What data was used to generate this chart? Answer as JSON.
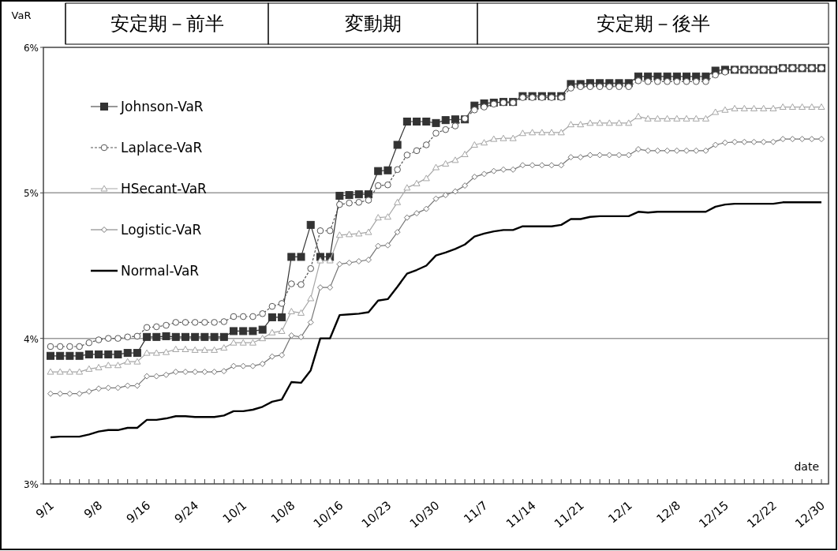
{
  "chart_data": {
    "type": "line",
    "ylabel": "VaR",
    "xlabel": "date",
    "annotations": [
      "安定期－前半",
      "変動期",
      "安定期－後半"
    ],
    "categories": [
      "9/1",
      null,
      null,
      null,
      null,
      "9/8",
      null,
      null,
      null,
      null,
      "9/16",
      null,
      null,
      null,
      null,
      "9/24",
      null,
      null,
      null,
      null,
      "10/1",
      null,
      null,
      null,
      null,
      "10/8",
      null,
      null,
      null,
      null,
      "10/16",
      null,
      null,
      null,
      null,
      "10/23",
      null,
      null,
      null,
      null,
      "10/30",
      null,
      null,
      null,
      null,
      "11/7",
      null,
      null,
      null,
      null,
      "11/14",
      null,
      null,
      null,
      null,
      "11/21",
      null,
      null,
      null,
      null,
      "12/1",
      null,
      null,
      null,
      null,
      "12/8",
      null,
      null,
      null,
      null,
      "12/15",
      null,
      null,
      null,
      null,
      "12/22",
      null,
      null,
      null,
      null,
      "12/30"
    ],
    "ylim": [
      3,
      6
    ],
    "yticks": [
      {
        "value": 3,
        "label": "3%"
      },
      {
        "value": 4,
        "label": "4%"
      },
      {
        "value": 5,
        "label": "5%"
      },
      {
        "value": 6,
        "label": "6%"
      }
    ],
    "grid": "y",
    "legend": "top left",
    "series": [
      {
        "name": "Johnson-VaR",
        "color": "#333333",
        "marker": "square",
        "line_style": "solid",
        "values": [
          3.88,
          3.88,
          3.88,
          3.88,
          3.89,
          3.89,
          3.89,
          3.89,
          3.9,
          3.9,
          4.01,
          4.01,
          4.015,
          4.01,
          4.01,
          4.01,
          4.01,
          4.01,
          4.01,
          4.05,
          4.05,
          4.05,
          4.06,
          4.145,
          4.145,
          4.56,
          4.56,
          4.78,
          4.56,
          4.56,
          4.98,
          4.985,
          4.99,
          4.99,
          5.15,
          5.155,
          5.33,
          5.49,
          5.49,
          5.49,
          5.48,
          5.5,
          5.505,
          5.505,
          5.6,
          5.615,
          5.62,
          5.625,
          5.625,
          5.665,
          5.665,
          5.665,
          5.665,
          5.665,
          5.748,
          5.748,
          5.754,
          5.754,
          5.754,
          5.754,
          5.754,
          5.8,
          5.8,
          5.8,
          5.8,
          5.8,
          5.8,
          5.8,
          5.8,
          5.84,
          5.846,
          5.846,
          5.846,
          5.846,
          5.846,
          5.846,
          5.857,
          5.857,
          5.857,
          5.857,
          5.857
        ]
      },
      {
        "name": "Laplace-VaR",
        "color": "#555555",
        "marker": "circle",
        "line_style": "dashed",
        "values": [
          3.944,
          3.944,
          3.944,
          3.944,
          3.97,
          3.99,
          4.0,
          4.0,
          4.01,
          4.015,
          4.075,
          4.08,
          4.09,
          4.11,
          4.11,
          4.11,
          4.11,
          4.11,
          4.115,
          4.15,
          4.15,
          4.15,
          4.17,
          4.22,
          4.24,
          4.375,
          4.37,
          4.48,
          4.74,
          4.74,
          4.92,
          4.93,
          4.935,
          4.95,
          5.05,
          5.055,
          5.16,
          5.26,
          5.29,
          5.33,
          5.41,
          5.435,
          5.46,
          5.51,
          5.57,
          5.59,
          5.61,
          5.62,
          5.62,
          5.655,
          5.655,
          5.655,
          5.655,
          5.655,
          5.72,
          5.73,
          5.73,
          5.73,
          5.73,
          5.73,
          5.73,
          5.77,
          5.765,
          5.765,
          5.765,
          5.765,
          5.765,
          5.765,
          5.765,
          5.81,
          5.83,
          5.846,
          5.846,
          5.846,
          5.846,
          5.846,
          5.857,
          5.857,
          5.857,
          5.857,
          5.857
        ]
      },
      {
        "name": "HSecant-VaR",
        "color": "#a6a6a6",
        "marker": "triangle",
        "line_style": "solid",
        "values": [
          3.77,
          3.77,
          3.77,
          3.77,
          3.79,
          3.8,
          3.815,
          3.815,
          3.84,
          3.84,
          3.9,
          3.9,
          3.905,
          3.925,
          3.925,
          3.92,
          3.92,
          3.92,
          3.935,
          3.97,
          3.97,
          3.97,
          4.0,
          4.04,
          4.05,
          4.185,
          4.175,
          4.275,
          4.535,
          4.535,
          4.71,
          4.715,
          4.72,
          4.73,
          4.83,
          4.835,
          4.935,
          5.035,
          5.065,
          5.1,
          5.175,
          5.2,
          5.225,
          5.265,
          5.33,
          5.345,
          5.37,
          5.375,
          5.375,
          5.41,
          5.415,
          5.415,
          5.415,
          5.415,
          5.47,
          5.47,
          5.48,
          5.48,
          5.48,
          5.48,
          5.48,
          5.525,
          5.51,
          5.51,
          5.51,
          5.51,
          5.51,
          5.51,
          5.51,
          5.555,
          5.57,
          5.58,
          5.58,
          5.58,
          5.58,
          5.58,
          5.59,
          5.59,
          5.59,
          5.59,
          5.59
        ]
      },
      {
        "name": "Logistic-VaR",
        "color": "#777777",
        "marker": "diamond",
        "line_style": "solid",
        "values": [
          3.62,
          3.62,
          3.62,
          3.62,
          3.635,
          3.655,
          3.66,
          3.66,
          3.675,
          3.675,
          3.74,
          3.74,
          3.75,
          3.77,
          3.77,
          3.77,
          3.77,
          3.77,
          3.775,
          3.81,
          3.81,
          3.81,
          3.825,
          3.875,
          3.885,
          4.02,
          4.01,
          4.11,
          4.35,
          4.35,
          4.51,
          4.52,
          4.53,
          4.54,
          4.635,
          4.64,
          4.73,
          4.83,
          4.86,
          4.89,
          4.96,
          4.985,
          5.01,
          5.05,
          5.11,
          5.13,
          5.15,
          5.16,
          5.16,
          5.19,
          5.19,
          5.19,
          5.19,
          5.19,
          5.245,
          5.245,
          5.26,
          5.26,
          5.26,
          5.26,
          5.26,
          5.3,
          5.29,
          5.29,
          5.29,
          5.29,
          5.29,
          5.29,
          5.29,
          5.33,
          5.345,
          5.35,
          5.35,
          5.35,
          5.35,
          5.35,
          5.37,
          5.37,
          5.37,
          5.37,
          5.37
        ]
      },
      {
        "name": "Normal-VaR",
        "color": "#000000",
        "marker": "none",
        "line_style": "solid",
        "values": [
          3.32,
          3.325,
          3.325,
          3.325,
          3.34,
          3.36,
          3.37,
          3.37,
          3.385,
          3.385,
          3.44,
          3.44,
          3.45,
          3.465,
          3.465,
          3.46,
          3.46,
          3.46,
          3.47,
          3.5,
          3.5,
          3.51,
          3.53,
          3.565,
          3.58,
          3.7,
          3.695,
          3.78,
          4.0,
          4.0,
          4.16,
          4.165,
          4.17,
          4.18,
          4.26,
          4.27,
          4.355,
          4.445,
          4.47,
          4.5,
          4.57,
          4.59,
          4.615,
          4.645,
          4.7,
          4.72,
          4.735,
          4.745,
          4.745,
          4.77,
          4.77,
          4.77,
          4.77,
          4.78,
          4.82,
          4.82,
          4.835,
          4.84,
          4.84,
          4.84,
          4.84,
          4.87,
          4.865,
          4.87,
          4.87,
          4.87,
          4.87,
          4.87,
          4.87,
          4.905,
          4.92,
          4.925,
          4.925,
          4.925,
          4.925,
          4.925,
          4.935,
          4.935,
          4.935,
          4.935,
          4.935
        ]
      }
    ]
  }
}
